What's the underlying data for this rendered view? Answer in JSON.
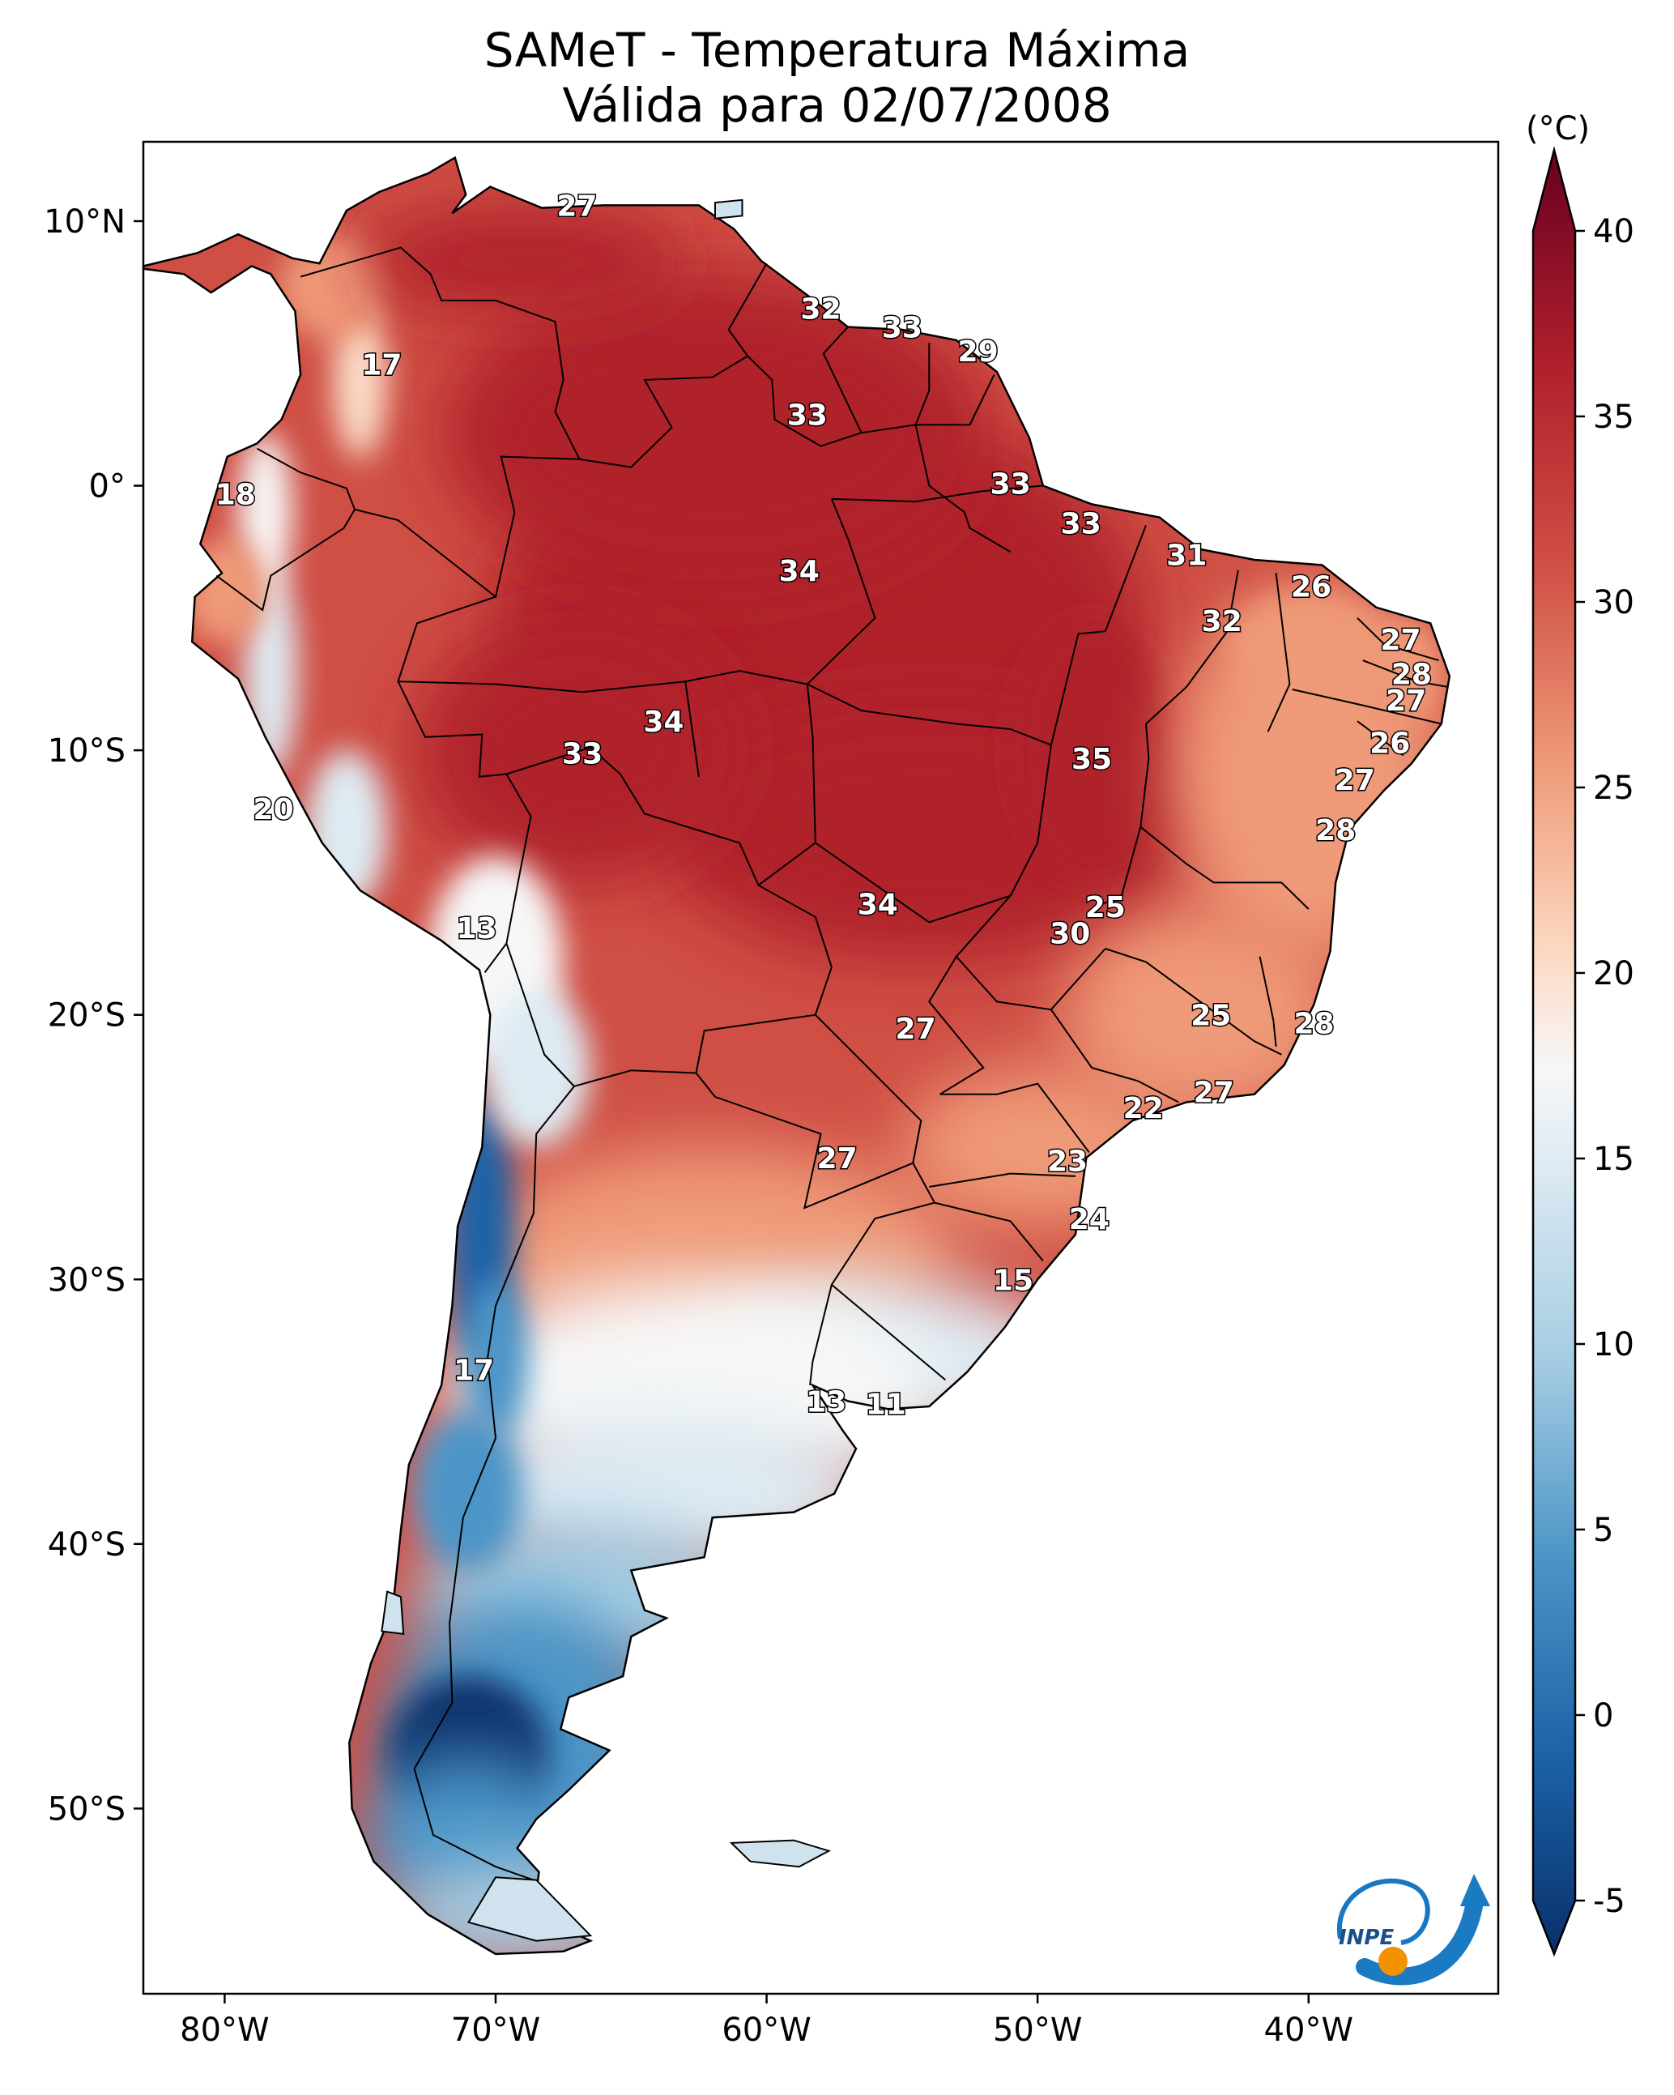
{
  "title_line1": "SAMeT - Temperatura Máxima",
  "title_line2": "Válida para 02/07/2008",
  "colorbar": {
    "unit_label": "(°C)",
    "min": -5,
    "max": 40,
    "ticks": [
      -5,
      0,
      5,
      10,
      15,
      20,
      25,
      30,
      35,
      40
    ],
    "colors": {
      "c_m5": "#08306b",
      "c_0": "#1c62a7",
      "c_5": "#4c95c7",
      "c_10": "#a6cde3",
      "c_15": "#deebf3",
      "c_17": "#f7f7f7",
      "c_20": "#fbdcc7",
      "c_25": "#ef9a78",
      "c_30": "#cf4f45",
      "c_35": "#b0202c",
      "c_40": "#67001f"
    }
  },
  "axes": {
    "lon_min": -83,
    "lon_max": -33,
    "lat_min": -57,
    "lat_max": 13,
    "x_ticks": [
      {
        "lon": -80,
        "label": "80°W"
      },
      {
        "lon": -70,
        "label": "70°W"
      },
      {
        "lon": -60,
        "label": "60°W"
      },
      {
        "lon": -50,
        "label": "50°W"
      },
      {
        "lon": -40,
        "label": "40°W"
      }
    ],
    "y_ticks": [
      {
        "lat": 10,
        "label": "10°N"
      },
      {
        "lat": 0,
        "label": "0°"
      },
      {
        "lat": -10,
        "label": "10°S"
      },
      {
        "lat": -20,
        "label": "20°S"
      },
      {
        "lat": -30,
        "label": "30°S"
      },
      {
        "lat": -40,
        "label": "40°S"
      },
      {
        "lat": -50,
        "label": "50°S"
      }
    ]
  },
  "station_labels": [
    {
      "lon": -67.0,
      "lat": 10.6,
      "text": "27"
    },
    {
      "lon": -74.2,
      "lat": 4.6,
      "text": "17"
    },
    {
      "lon": -58.0,
      "lat": 6.7,
      "text": "32"
    },
    {
      "lon": -55.0,
      "lat": 6.0,
      "text": "33"
    },
    {
      "lon": -52.2,
      "lat": 5.1,
      "text": "29"
    },
    {
      "lon": -58.5,
      "lat": 2.7,
      "text": "33"
    },
    {
      "lon": -51.0,
      "lat": 0.1,
      "text": "33"
    },
    {
      "lon": -48.4,
      "lat": -1.4,
      "text": "33"
    },
    {
      "lon": -44.5,
      "lat": -2.6,
      "text": "31"
    },
    {
      "lon": -39.9,
      "lat": -3.8,
      "text": "26"
    },
    {
      "lon": -79.6,
      "lat": -0.3,
      "text": "18"
    },
    {
      "lon": -58.8,
      "lat": -3.2,
      "text": "34"
    },
    {
      "lon": -43.2,
      "lat": -5.1,
      "text": "32"
    },
    {
      "lon": -36.6,
      "lat": -5.8,
      "text": "27"
    },
    {
      "lon": -36.2,
      "lat": -7.1,
      "text": "28"
    },
    {
      "lon": -36.4,
      "lat": -8.1,
      "text": "27"
    },
    {
      "lon": -63.8,
      "lat": -8.9,
      "text": "34"
    },
    {
      "lon": -66.8,
      "lat": -10.1,
      "text": "33"
    },
    {
      "lon": -48.0,
      "lat": -10.3,
      "text": "35"
    },
    {
      "lon": -37.0,
      "lat": -9.7,
      "text": "26"
    },
    {
      "lon": -38.3,
      "lat": -11.1,
      "text": "27"
    },
    {
      "lon": -78.2,
      "lat": -12.2,
      "text": "20"
    },
    {
      "lon": -39.0,
      "lat": -13.0,
      "text": "28"
    },
    {
      "lon": -70.7,
      "lat": -16.7,
      "text": "13"
    },
    {
      "lon": -55.9,
      "lat": -15.8,
      "text": "34"
    },
    {
      "lon": -47.5,
      "lat": -15.9,
      "text": "25"
    },
    {
      "lon": -48.8,
      "lat": -16.9,
      "text": "30"
    },
    {
      "lon": -54.5,
      "lat": -20.5,
      "text": "27"
    },
    {
      "lon": -43.6,
      "lat": -20.0,
      "text": "25"
    },
    {
      "lon": -39.8,
      "lat": -20.3,
      "text": "28"
    },
    {
      "lon": -46.1,
      "lat": -23.5,
      "text": "22"
    },
    {
      "lon": -43.5,
      "lat": -22.9,
      "text": "27"
    },
    {
      "lon": -57.4,
      "lat": -25.4,
      "text": "27"
    },
    {
      "lon": -48.9,
      "lat": -25.5,
      "text": "23"
    },
    {
      "lon": -48.1,
      "lat": -27.7,
      "text": "24"
    },
    {
      "lon": -50.9,
      "lat": -30.0,
      "text": "15"
    },
    {
      "lon": -70.8,
      "lat": -33.4,
      "text": "17"
    },
    {
      "lon": -57.8,
      "lat": -34.6,
      "text": "13"
    },
    {
      "lon": -55.6,
      "lat": -34.7,
      "text": "11"
    }
  ],
  "logo": {
    "text": "INPE"
  }
}
